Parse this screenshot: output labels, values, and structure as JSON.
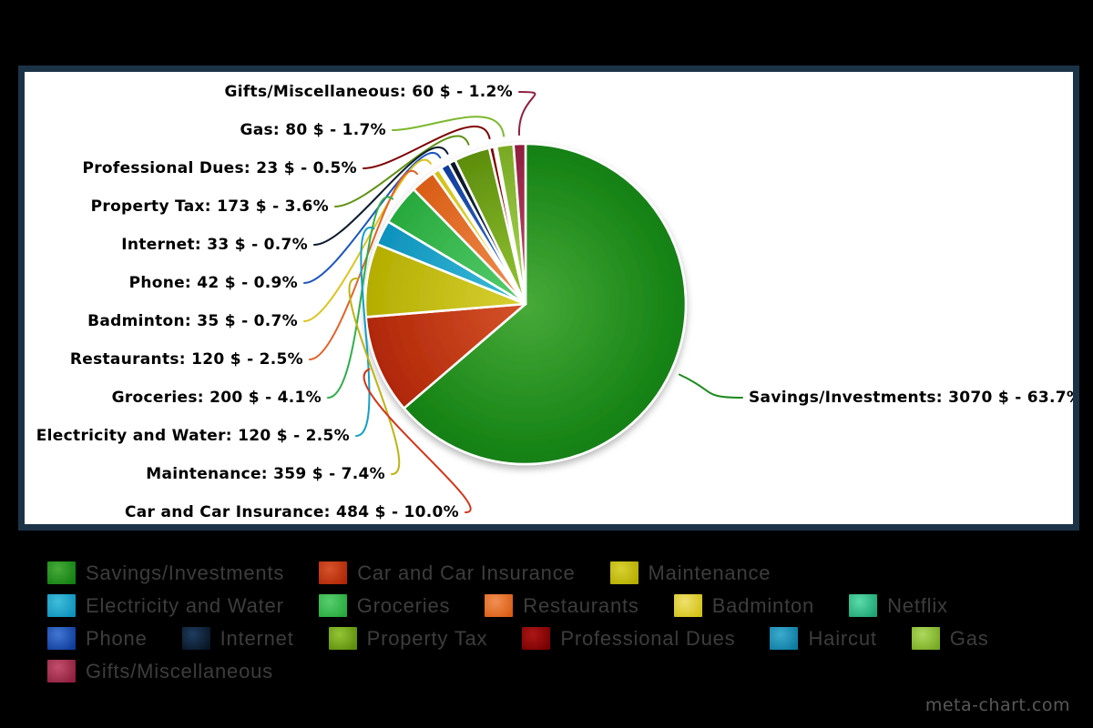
{
  "watermark": "meta-chart.com",
  "colors": {
    "page_background": "#000000",
    "panel_background": "#ffffff",
    "panel_border": "#1c3347",
    "callout_text": "#000000",
    "legend_text": "#3d3d3d",
    "watermark_text": "#585858",
    "slice_divider": "#ffffff"
  },
  "chart_data": {
    "type": "pie",
    "title": "",
    "unit": "$",
    "legend_position": "bottom",
    "label_format": "{label}: {value} $ - {pct}%",
    "slices": [
      {
        "label": "Savings/Investments",
        "value": 3070,
        "pct": "63.7",
        "color_center": "#47aa39",
        "color_edge": "#128012",
        "color_line": "#1e8a1e"
      },
      {
        "label": "Car and Car Insurance",
        "value": 484,
        "pct": "10.0",
        "color_center": "#d5532b",
        "color_edge": "#b02706",
        "color_line": "#d43418"
      },
      {
        "label": "Maintenance",
        "value": 359,
        "pct": "7.4",
        "color_center": "#d8d133",
        "color_edge": "#b4ad00",
        "color_line": "#bdb414"
      },
      {
        "label": "Electricity and Water",
        "value": 120,
        "pct": "2.5",
        "color_center": "#40bdda",
        "color_edge": "#0d92bc",
        "color_line": "#13a0c6"
      },
      {
        "label": "Groceries",
        "value": 200,
        "pct": "4.1",
        "color_center": "#58ce6f",
        "color_edge": "#27a93c",
        "color_line": "#2fae4a"
      },
      {
        "label": "Restaurants",
        "value": 120,
        "pct": "2.5",
        "color_center": "#f19054",
        "color_edge": "#d95d15",
        "color_line": "#e2622a"
      },
      {
        "label": "Badminton",
        "value": 35,
        "pct": "0.7",
        "color_center": "#efe06e",
        "color_edge": "#d2c115",
        "color_line": "#dcc41e"
      },
      {
        "label": "Netflix",
        "value": null,
        "pct": null,
        "color_center": "#5bdbaa",
        "color_edge": "#1ea473",
        "color_line": null
      },
      {
        "label": "Phone",
        "value": 42,
        "pct": "0.9",
        "color_center": "#4377d3",
        "color_edge": "#0f3c9c",
        "color_line": "#1c56c0"
      },
      {
        "label": "Internet",
        "value": 33,
        "pct": "0.7",
        "color_center": "#1e3c5f",
        "color_edge": "#091524",
        "color_line": "#0d1b2e"
      },
      {
        "label": "Property Tax",
        "value": 173,
        "pct": "3.6",
        "color_center": "#94c535",
        "color_edge": "#5c8d0c",
        "color_line": "#5f9212"
      },
      {
        "label": "Professional Dues",
        "value": 23,
        "pct": "0.5",
        "color_center": "#ac1717",
        "color_edge": "#770000",
        "color_line": "#7e0404"
      },
      {
        "label": "Haircut",
        "value": null,
        "pct": null,
        "color_center": "#3cabcd",
        "color_edge": "#0d7ba1",
        "color_line": null
      },
      {
        "label": "Gas",
        "value": 80,
        "pct": "1.7",
        "color_center": "#add95d",
        "color_edge": "#78a922",
        "color_line": "#7cb82e"
      },
      {
        "label": "Gifts/Miscellaneous",
        "value": 60,
        "pct": "1.2",
        "color_center": "#c34f6d",
        "color_edge": "#8e1e3e",
        "color_line": "#8f2040"
      }
    ],
    "legend_rows": [
      [
        "Savings/Investments",
        "Car and Car Insurance",
        "Maintenance"
      ],
      [
        "Electricity and Water",
        "Groceries",
        "Restaurants",
        "Badminton",
        "Netflix"
      ],
      [
        "Phone",
        "Internet",
        "Property Tax",
        "Professional Dues",
        "Haircut",
        "Gas"
      ],
      [
        "Gifts/Miscellaneous"
      ]
    ]
  }
}
